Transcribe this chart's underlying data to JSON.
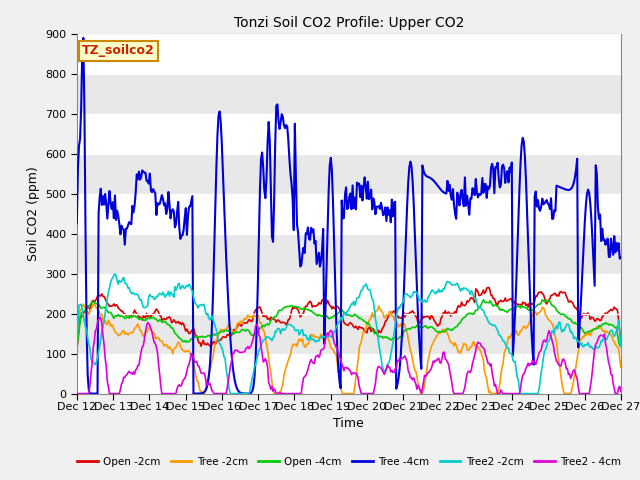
{
  "title": "Tonzi Soil CO2 Profile: Upper CO2",
  "xlabel": "Time",
  "ylabel": "Soil CO2 (ppm)",
  "ylim": [
    0,
    900
  ],
  "yticks": [
    0,
    100,
    200,
    300,
    400,
    500,
    600,
    700,
    800,
    900
  ],
  "fig_bg_color": "#f0f0f0",
  "plot_bg_color": "#f0f0f0",
  "grid_color": "#ffffff",
  "legend_label": "TZ_soilco2",
  "legend_label_color": "#cc2200",
  "legend_label_bg": "#ffffcc",
  "legend_label_edge": "#cc8800",
  "series_labels": [
    "Open -2cm",
    "Tree -2cm",
    "Open -4cm",
    "Tree -4cm",
    "Tree2 -2cm",
    "Tree2 - 4cm"
  ],
  "series_colors": [
    "#dd0000",
    "#ff9900",
    "#00cc00",
    "#0000dd",
    "#00cccc",
    "#dd00dd"
  ],
  "x_tick_labels": [
    "Dec 12",
    "Dec 13",
    "Dec 14",
    "Dec 15",
    "Dec 16",
    "Dec 17",
    "Dec 18",
    "Dec 19",
    "Dec 20",
    "Dec 21",
    "Dec 22",
    "Dec 23",
    "Dec 24",
    "Dec 25",
    "Dec 26",
    "Dec 27"
  ],
  "n_points": 500,
  "band_colors": [
    "#e8e8e8",
    "#f8f8f8"
  ]
}
